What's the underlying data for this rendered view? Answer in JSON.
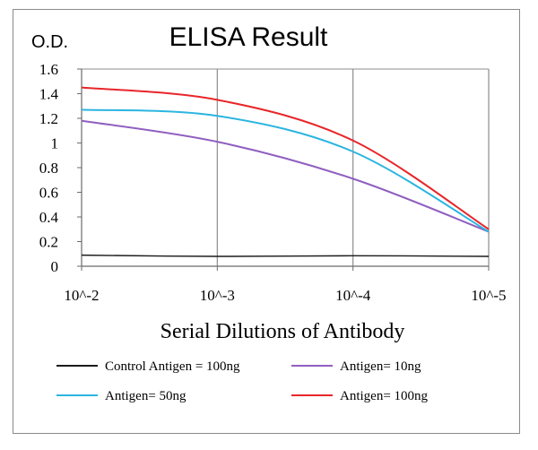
{
  "chart_data": {
    "type": "line",
    "title": "ELISA Result",
    "ylabel": "O.D.",
    "xlabel": "Serial Dilutions  of Antibody",
    "ylim": [
      0,
      1.6
    ],
    "yticks": [
      "0",
      "0.2",
      "0.4",
      "0.6",
      "0.8",
      "1",
      "1.2",
      "1.4",
      "1.6"
    ],
    "x_tick_labels": [
      "10^-2",
      "10^-3",
      "10^-4",
      "10^-5"
    ],
    "x": [
      0.01,
      0.001,
      0.0001,
      1e-05
    ],
    "x_scale": "log (decreasing)",
    "grid": "vertical lines at each x tick",
    "legend_position": "bottom",
    "series": [
      {
        "name": "Control Antigen = 100ng",
        "color": "#1a1a1a",
        "values": [
          0.09,
          0.08,
          0.085,
          0.08
        ]
      },
      {
        "name": "Antigen= 10ng",
        "color": "#8f5fc0",
        "values": [
          1.18,
          1.01,
          0.71,
          0.28
        ]
      },
      {
        "name": "Antigen= 50ng",
        "color": "#2bb5e0",
        "values": [
          1.27,
          1.22,
          0.93,
          0.28
        ]
      },
      {
        "name": "Antigen= 100ng",
        "color": "#e8262a",
        "values": [
          1.45,
          1.35,
          1.02,
          0.3
        ]
      }
    ]
  }
}
